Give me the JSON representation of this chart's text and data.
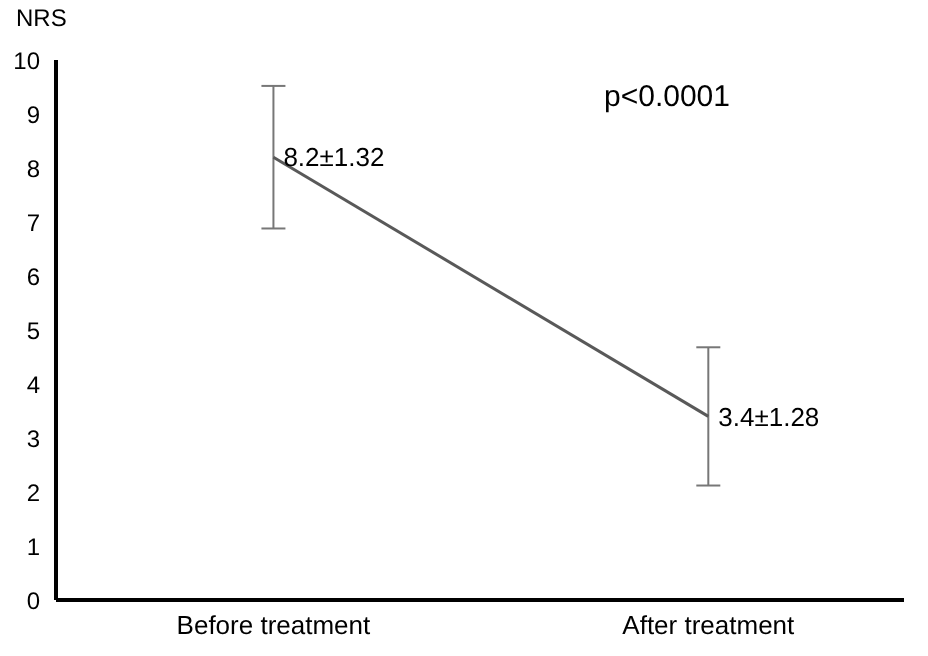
{
  "chart_data": {
    "type": "line",
    "ylabel": "NRS",
    "annotations": [
      "p<0.0001"
    ],
    "categories": [
      "Before treatment",
      "After treatment"
    ],
    "series": [
      {
        "color": "#595959",
        "values": [
          8.2,
          3.4
        ],
        "errors": [
          1.32,
          1.28
        ],
        "value_labels": [
          "8.2±1.32",
          "3.4±1.28"
        ]
      }
    ],
    "ylim": [
      0,
      10
    ],
    "yticks": [
      0,
      1,
      2,
      3,
      4,
      5,
      6,
      7,
      8,
      9,
      10
    ],
    "grid": false,
    "marker": "none",
    "line_style": "solid"
  }
}
